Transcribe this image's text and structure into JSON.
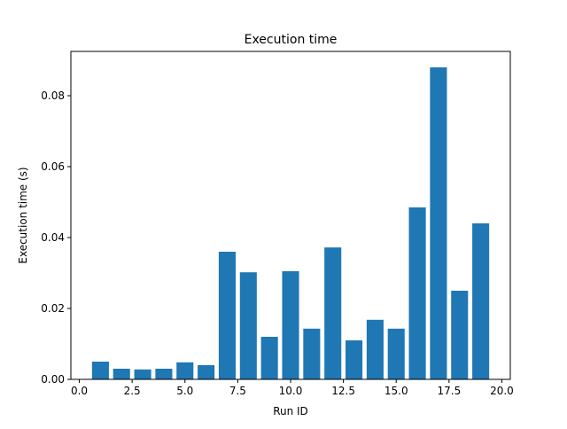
{
  "chart_data": {
    "type": "bar",
    "title": "Execution time",
    "xlabel": "Run ID",
    "ylabel": "Execution time (s)",
    "x": [
      1,
      2,
      3,
      4,
      5,
      6,
      7,
      8,
      9,
      10,
      11,
      12,
      13,
      14,
      15,
      16,
      17,
      18,
      19
    ],
    "values": [
      0.005,
      0.003,
      0.0028,
      0.003,
      0.0048,
      0.004,
      0.036,
      0.0302,
      0.012,
      0.0305,
      0.0143,
      0.0372,
      0.011,
      0.0168,
      0.0143,
      0.0485,
      0.088,
      0.025,
      0.044
    ],
    "xlim": [
      -0.4,
      20.4
    ],
    "ylim": [
      0,
      0.0925
    ],
    "xticks": [
      0.0,
      2.5,
      5.0,
      7.5,
      10.0,
      12.5,
      15.0,
      17.5,
      20.0
    ],
    "xtick_labels": [
      "0.0",
      "2.5",
      "5.0",
      "7.5",
      "10.0",
      "12.5",
      "15.0",
      "17.5",
      "20.0"
    ],
    "yticks": [
      0.0,
      0.02,
      0.04,
      0.06,
      0.08
    ],
    "ytick_labels": [
      "0.00",
      "0.02",
      "0.04",
      "0.06",
      "0.08"
    ],
    "bar_width": 0.8,
    "bar_color": "#1f77b4",
    "grid": false,
    "legend": "none"
  }
}
